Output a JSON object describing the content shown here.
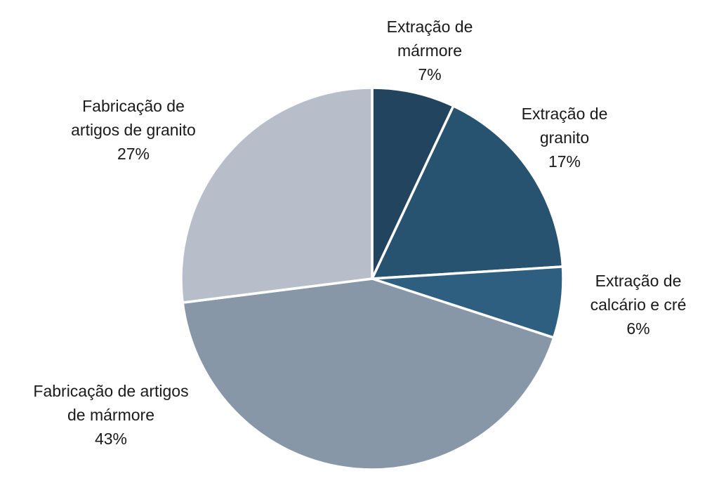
{
  "chart_data": {
    "type": "pie",
    "title": "",
    "start_angle_deg": 0,
    "direction": "clockwise",
    "slices": [
      {
        "label_lines": [
          "Extração de",
          "mármore"
        ],
        "value": 7,
        "value_label": "7%",
        "color": "#22445f"
      },
      {
        "label_lines": [
          "Extração de",
          "granito"
        ],
        "value": 17,
        "value_label": "17%",
        "color": "#285370"
      },
      {
        "label_lines": [
          "Extração de",
          "calcário e cré"
        ],
        "value": 6,
        "value_label": "6%",
        "color": "#2e5f80"
      },
      {
        "label_lines": [
          "Fabricação de artigos",
          "de mármore"
        ],
        "value": 43,
        "value_label": "43%",
        "color": "#8897a8"
      },
      {
        "label_lines": [
          "Fabricação de",
          "artigos de granito"
        ],
        "value": 27,
        "value_label": "27%",
        "color": "#b7bec9"
      }
    ]
  }
}
